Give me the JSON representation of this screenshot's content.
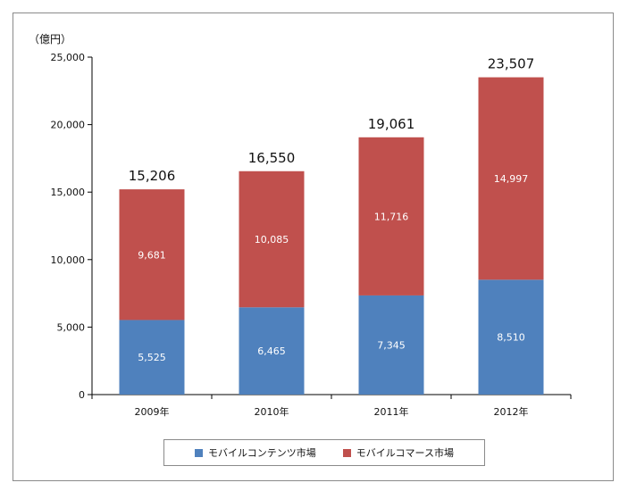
{
  "chart_data": {
    "type": "bar",
    "stacked": true,
    "unit_label": "（億円）",
    "categories": [
      "2009年",
      "2010年",
      "2011年",
      "2012年"
    ],
    "series": [
      {
        "name": "モバイルコンテンツ市場",
        "color": "#4f81bd",
        "values": [
          5525,
          6465,
          7345,
          8510
        ]
      },
      {
        "name": "モバイルコマース市場",
        "color": "#c0504d",
        "values": [
          9681,
          10085,
          11716,
          14997
        ]
      }
    ],
    "value_labels": [
      [
        "5,525",
        "6,465",
        "7,345",
        "8,510"
      ],
      [
        "9,681",
        "10,085",
        "11,716",
        "14,997"
      ]
    ],
    "totals": [
      15206,
      16550,
      19061,
      23507
    ],
    "total_labels": [
      "15,206",
      "16,550",
      "19,061",
      "23,507"
    ],
    "y_ticks": [
      0,
      5000,
      10000,
      15000,
      20000,
      25000
    ],
    "y_tick_labels": [
      "0",
      "5,000",
      "10,000",
      "15,000",
      "20,000",
      "25,000"
    ],
    "ylim": [
      0,
      25000
    ],
    "grid": false,
    "legend_position": "bottom"
  }
}
